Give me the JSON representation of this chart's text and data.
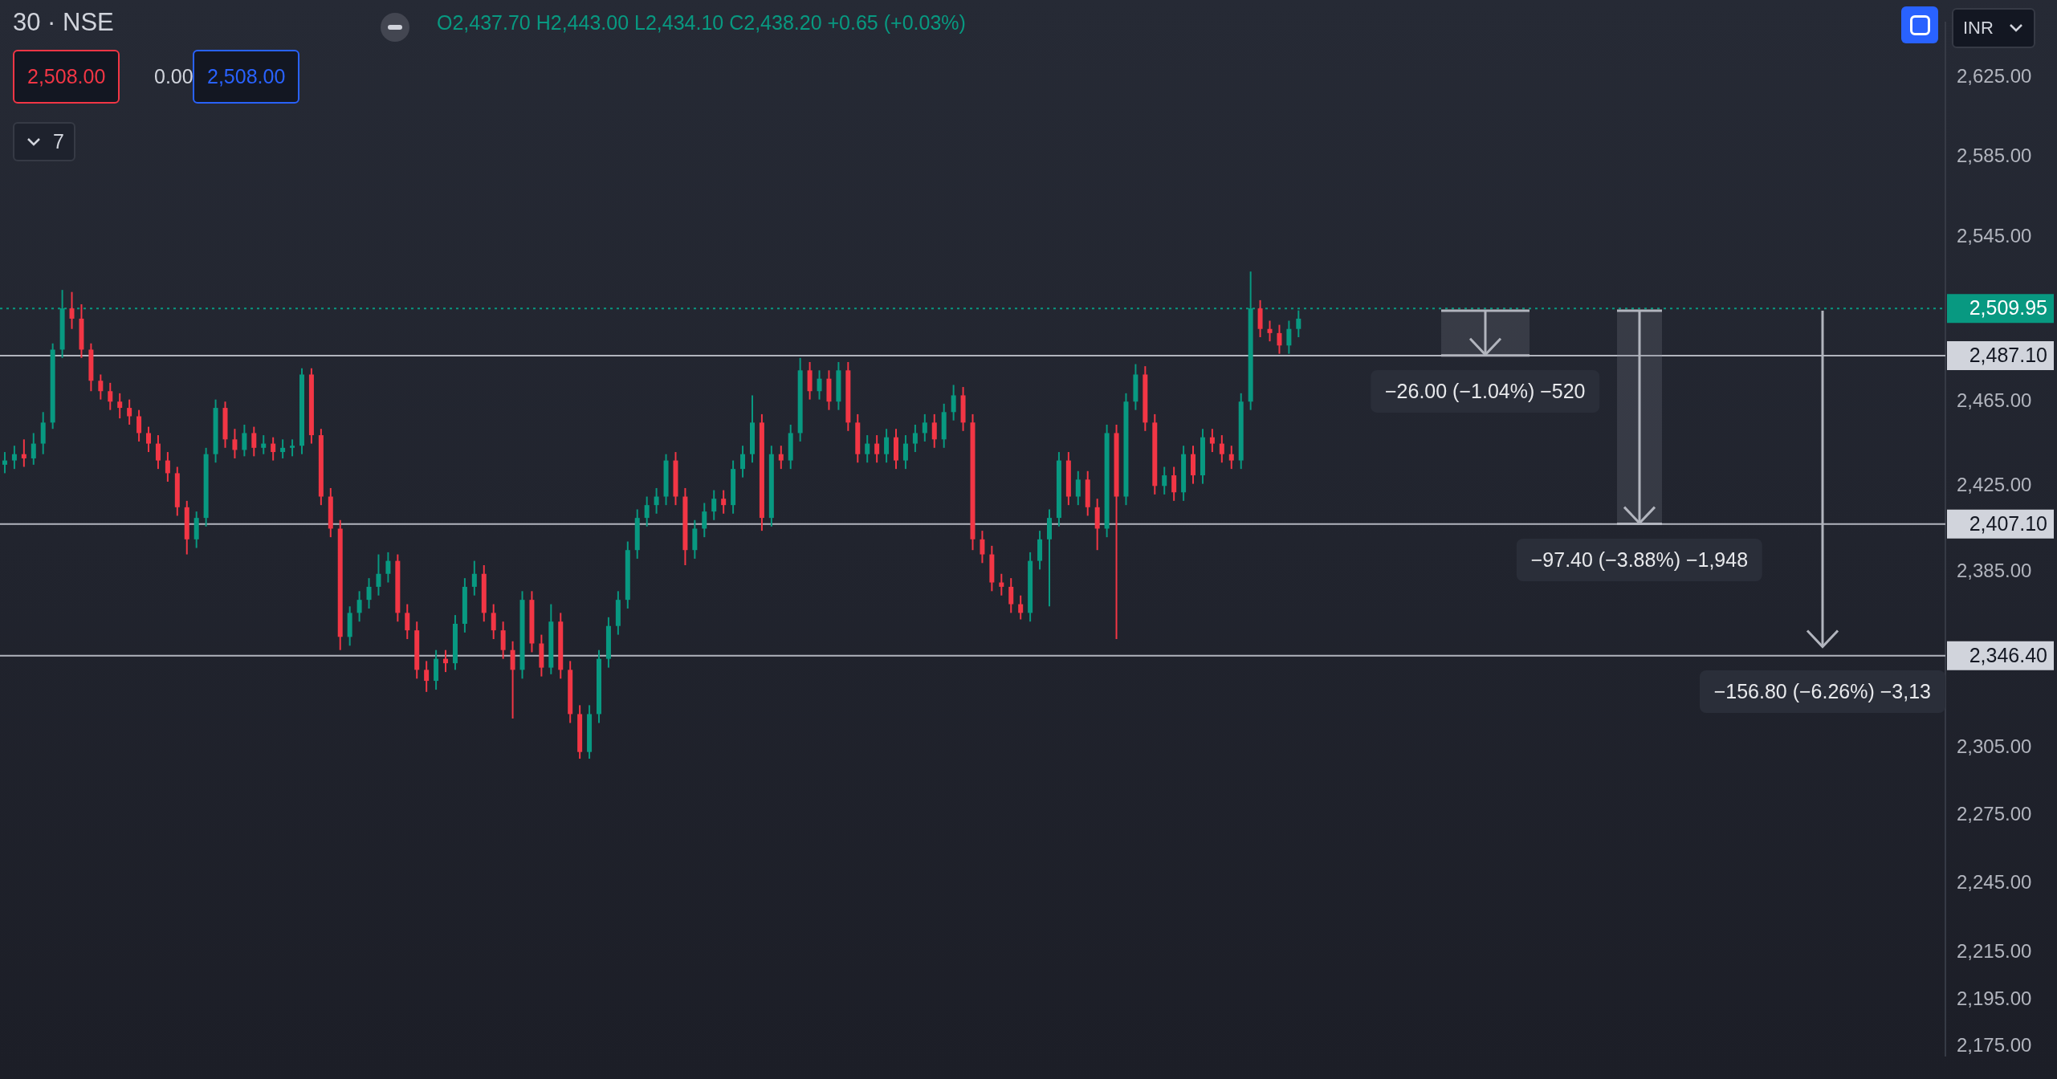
{
  "chart_data": {
    "type": "candlestick",
    "title": "30 · NSE",
    "subtitle": "O2,437.70 H2,443.00 L2,434.10 C2,438.20 +0.65 (+0.03%)",
    "annotations": [
      "2,508.00",
      "0.00",
      "2,508.00",
      "7",
      "INR",
      {
        "text": "−26.00 (−1.04%) −520",
        "y": 2487.1
      },
      {
        "text": "−97.40 (−3.88%) −1,948",
        "y": 2407.1
      },
      {
        "text": "−156.80 (−6.26%) −3,13",
        "y": 2346.4
      }
    ],
    "categories": [
      null,
      null,
      null,
      null,
      null,
      null,
      null,
      null,
      null,
      null,
      null,
      null,
      null,
      null,
      null,
      null,
      null,
      null,
      null,
      null,
      null,
      null,
      null,
      null,
      null,
      null,
      null,
      null,
      null,
      null,
      null,
      null,
      null,
      null,
      null,
      null,
      null,
      null,
      null,
      null,
      null,
      null,
      null,
      null,
      null,
      null,
      null,
      null,
      null,
      null,
      null,
      null,
      null,
      null,
      null,
      null,
      null,
      null,
      null,
      null,
      null,
      null,
      null,
      null,
      null,
      null,
      null,
      null,
      null,
      null,
      null,
      null,
      null,
      null,
      null,
      null,
      null,
      null,
      null,
      null,
      null,
      null,
      null,
      null,
      null,
      null,
      null,
      null,
      null,
      null,
      null,
      null,
      null,
      null,
      null,
      null,
      null,
      null,
      null,
      null,
      null,
      null,
      null,
      null,
      null,
      null,
      null,
      null,
      null,
      null,
      null,
      null,
      null,
      null,
      null,
      null,
      null,
      null,
      null,
      null,
      null,
      null,
      null,
      null,
      null,
      null,
      null,
      null,
      null,
      null,
      null,
      null,
      null,
      null,
      null,
      null,
      null,
      null,
      null,
      null,
      null,
      null,
      null,
      null,
      null,
      null,
      null,
      null,
      null,
      null,
      null,
      null,
      null,
      null,
      null,
      null,
      null,
      null,
      null,
      null,
      null,
      null,
      null,
      null,
      null,
      null,
      null,
      null,
      null,
      null,
      null,
      null,
      null,
      null,
      null,
      null,
      null,
      null,
      null,
      null,
      null,
      null,
      null,
      null,
      null,
      null,
      null,
      null,
      null,
      null,
      null,
      null,
      null,
      null,
      null,
      null,
      null,
      null,
      null,
      null,
      null,
      null,
      null
    ],
    "ohlc": [
      [
        2435,
        2441,
        2431,
        2437
      ],
      [
        2437,
        2444,
        2433,
        2440
      ],
      [
        2440,
        2447,
        2434,
        2438
      ],
      [
        2438,
        2450,
        2435,
        2445
      ],
      [
        2445,
        2460,
        2440,
        2455
      ],
      [
        2455,
        2493,
        2452,
        2490
      ],
      [
        2490,
        2519,
        2486,
        2510
      ],
      [
        2510,
        2518,
        2500,
        2505
      ],
      [
        2505,
        2512,
        2486,
        2490
      ],
      [
        2490,
        2493,
        2470,
        2475
      ],
      [
        2475,
        2478,
        2466,
        2470
      ],
      [
        2470,
        2474,
        2461,
        2465
      ],
      [
        2465,
        2469,
        2457,
        2462
      ],
      [
        2462,
        2466,
        2454,
        2458
      ],
      [
        2458,
        2461,
        2446,
        2450
      ],
      [
        2450,
        2453,
        2441,
        2445
      ],
      [
        2445,
        2449,
        2433,
        2437
      ],
      [
        2437,
        2441,
        2427,
        2431
      ],
      [
        2431,
        2434,
        2411,
        2415
      ],
      [
        2415,
        2418,
        2393,
        2400
      ],
      [
        2400,
        2413,
        2396,
        2410
      ],
      [
        2410,
        2443,
        2406,
        2440
      ],
      [
        2440,
        2466,
        2436,
        2462
      ],
      [
        2462,
        2465,
        2443,
        2447
      ],
      [
        2447,
        2452,
        2438,
        2442
      ],
      [
        2442,
        2454,
        2439,
        2450
      ],
      [
        2450,
        2453,
        2439,
        2443
      ],
      [
        2443,
        2449,
        2440,
        2445
      ],
      [
        2445,
        2448,
        2437,
        2441
      ],
      [
        2441,
        2447,
        2438,
        2443
      ],
      [
        2443,
        2447,
        2439,
        2444
      ],
      [
        2444,
        2481,
        2440,
        2478
      ],
      [
        2478,
        2481,
        2445,
        2449
      ],
      [
        2449,
        2452,
        2416,
        2420
      ],
      [
        2420,
        2424,
        2401,
        2405
      ],
      [
        2405,
        2409,
        2349,
        2355
      ],
      [
        2355,
        2369,
        2351,
        2366
      ],
      [
        2366,
        2376,
        2362,
        2372
      ],
      [
        2372,
        2382,
        2368,
        2378
      ],
      [
        2378,
        2393,
        2374,
        2384
      ],
      [
        2384,
        2394,
        2380,
        2390
      ],
      [
        2390,
        2393,
        2362,
        2366
      ],
      [
        2366,
        2370,
        2354,
        2358
      ],
      [
        2358,
        2362,
        2336,
        2340
      ],
      [
        2340,
        2344,
        2330,
        2335
      ],
      [
        2335,
        2349,
        2331,
        2345
      ],
      [
        2345,
        2349,
        2339,
        2343
      ],
      [
        2343,
        2365,
        2340,
        2361
      ],
      [
        2361,
        2382,
        2357,
        2378
      ],
      [
        2378,
        2390,
        2374,
        2384
      ],
      [
        2384,
        2388,
        2362,
        2366
      ],
      [
        2366,
        2370,
        2354,
        2358
      ],
      [
        2358,
        2362,
        2345,
        2349
      ],
      [
        2349,
        2353,
        2318,
        2340
      ],
      [
        2340,
        2376,
        2336,
        2372
      ],
      [
        2372,
        2376,
        2348,
        2352
      ],
      [
        2352,
        2356,
        2337,
        2341
      ],
      [
        2341,
        2370,
        2338,
        2362
      ],
      [
        2362,
        2366,
        2336,
        2340
      ],
      [
        2340,
        2344,
        2316,
        2320
      ],
      [
        2320,
        2324,
        2300,
        2303
      ],
      [
        2303,
        2324,
        2300,
        2320
      ],
      [
        2320,
        2349,
        2316,
        2345
      ],
      [
        2345,
        2364,
        2341,
        2360
      ],
      [
        2360,
        2376,
        2356,
        2372
      ],
      [
        2372,
        2399,
        2368,
        2395
      ],
      [
        2395,
        2414,
        2391,
        2410
      ],
      [
        2410,
        2420,
        2406,
        2416
      ],
      [
        2416,
        2424,
        2412,
        2420
      ],
      [
        2420,
        2440,
        2416,
        2437
      ],
      [
        2437,
        2441,
        2416,
        2420
      ],
      [
        2420,
        2424,
        2388,
        2395
      ],
      [
        2395,
        2409,
        2391,
        2405
      ],
      [
        2405,
        2417,
        2401,
        2413
      ],
      [
        2413,
        2423,
        2409,
        2419
      ],
      [
        2419,
        2423,
        2412,
        2416
      ],
      [
        2416,
        2437,
        2412,
        2433
      ],
      [
        2433,
        2444,
        2429,
        2440
      ],
      [
        2440,
        2468,
        2436,
        2455
      ],
      [
        2455,
        2459,
        2404,
        2410
      ],
      [
        2410,
        2444,
        2406,
        2440
      ],
      [
        2440,
        2444,
        2433,
        2437
      ],
      [
        2437,
        2454,
        2433,
        2450
      ],
      [
        2450,
        2486,
        2446,
        2480
      ],
      [
        2480,
        2484,
        2466,
        2470
      ],
      [
        2470,
        2480,
        2466,
        2476
      ],
      [
        2476,
        2480,
        2461,
        2465
      ],
      [
        2465,
        2484,
        2461,
        2480
      ],
      [
        2480,
        2484,
        2451,
        2455
      ],
      [
        2455,
        2459,
        2436,
        2440
      ],
      [
        2440,
        2449,
        2436,
        2445
      ],
      [
        2445,
        2449,
        2436,
        2440
      ],
      [
        2440,
        2452,
        2436,
        2448
      ],
      [
        2448,
        2452,
        2433,
        2437
      ],
      [
        2437,
        2449,
        2433,
        2445
      ],
      [
        2445,
        2454,
        2441,
        2450
      ],
      [
        2450,
        2459,
        2446,
        2455
      ],
      [
        2455,
        2459,
        2443,
        2447
      ],
      [
        2447,
        2464,
        2443,
        2460
      ],
      [
        2460,
        2473,
        2456,
        2468
      ],
      [
        2468,
        2472,
        2451,
        2455
      ],
      [
        2455,
        2459,
        2395,
        2400
      ],
      [
        2400,
        2404,
        2389,
        2393
      ],
      [
        2393,
        2397,
        2376,
        2380
      ],
      [
        2380,
        2384,
        2374,
        2378
      ],
      [
        2378,
        2382,
        2366,
        2370
      ],
      [
        2370,
        2374,
        2363,
        2366
      ],
      [
        2366,
        2394,
        2362,
        2390
      ],
      [
        2390,
        2404,
        2386,
        2400
      ],
      [
        2400,
        2414,
        2369,
        2410
      ],
      [
        2410,
        2441,
        2406,
        2437
      ],
      [
        2437,
        2441,
        2416,
        2420
      ],
      [
        2420,
        2432,
        2416,
        2428
      ],
      [
        2428,
        2432,
        2411,
        2415
      ],
      [
        2415,
        2419,
        2395,
        2405
      ],
      [
        2405,
        2454,
        2401,
        2450
      ],
      [
        2450,
        2454,
        2354,
        2420
      ],
      [
        2420,
        2469,
        2416,
        2465
      ],
      [
        2465,
        2483,
        2461,
        2478
      ],
      [
        2478,
        2482,
        2451,
        2455
      ],
      [
        2455,
        2459,
        2421,
        2425
      ],
      [
        2425,
        2434,
        2421,
        2430
      ],
      [
        2430,
        2434,
        2418,
        2422
      ],
      [
        2422,
        2444,
        2418,
        2440
      ],
      [
        2440,
        2444,
        2426,
        2430
      ],
      [
        2430,
        2452,
        2426,
        2448
      ],
      [
        2448,
        2452,
        2441,
        2445
      ],
      [
        2445,
        2449,
        2436,
        2440
      ],
      [
        2440,
        2444,
        2433,
        2437
      ],
      [
        2437,
        2469,
        2433,
        2465
      ],
      [
        2465,
        2528,
        2461,
        2510
      ],
      [
        2510,
        2514,
        2496,
        2500
      ],
      [
        2500,
        2504,
        2494,
        2498
      ],
      [
        2498,
        2502,
        2488,
        2492
      ],
      [
        2492,
        2504,
        2488,
        2500
      ],
      [
        2500,
        2509,
        2496,
        2505
      ],
      null,
      null,
      null,
      null,
      null,
      null,
      null,
      null,
      null,
      null,
      null,
      null,
      null,
      null,
      null,
      null,
      null,
      null,
      null,
      null,
      null,
      null,
      null,
      null,
      null,
      null,
      null,
      null,
      null,
      null,
      null,
      null,
      null,
      null,
      null,
      null,
      null,
      null,
      null,
      null,
      null,
      null,
      null,
      null,
      null,
      null,
      null,
      null,
      null,
      null,
      null,
      null,
      null,
      null,
      null,
      null,
      null,
      null,
      null,
      null,
      null,
      null,
      null,
      null,
      null,
      null,
      null
    ],
    "log": true,
    "ylim": [
      2171,
      2653
    ],
    "yticks": [
      {
        "value": 2625,
        "label": "2,625.00"
      },
      {
        "value": 2585,
        "label": "2,585.00"
      },
      {
        "value": 2545,
        "label": "2,545.00"
      },
      {
        "value": 2465,
        "label": "2,465.00"
      },
      {
        "value": 2425,
        "label": "2,425.00"
      },
      {
        "value": 2385,
        "label": "2,385.00"
      },
      {
        "value": 2305,
        "label": "2,305.00"
      },
      {
        "value": 2275,
        "label": "2,275.00"
      },
      {
        "value": 2245,
        "label": "2,245.00"
      },
      {
        "value": 2215,
        "label": "2,215.00"
      },
      {
        "value": 2195,
        "label": "2,195.00"
      },
      {
        "value": 2175,
        "label": "2,175.00"
      }
    ],
    "tick_labels": "y",
    "ref_lines": [
      {
        "axis": "y",
        "value": 2509.95,
        "label": "2,509.95",
        "color": "#089981",
        "line_style": "dotted"
      },
      {
        "axis": "y",
        "value": 2487.1,
        "label": "2,487.10",
        "color": "#b2b5be",
        "line_style": "solid"
      },
      {
        "axis": "y",
        "value": 2407.1,
        "label": "2,407.10",
        "color": "#b2b5be",
        "line_style": "solid"
      },
      {
        "axis": "y",
        "value": 2346.4,
        "label": "2,346.40",
        "color": "#b2b5be",
        "line_style": "solid"
      }
    ]
  }
}
